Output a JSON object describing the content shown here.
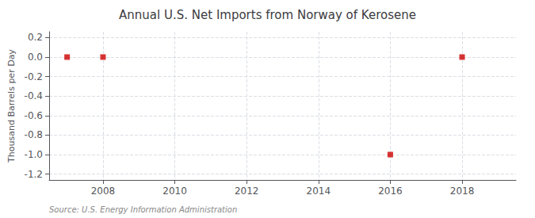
{
  "chart_data": {
    "type": "scatter",
    "title": "Annual U.S. Net Imports from Norway of Kerosene",
    "ylabel": "Thousand Barrels per Day",
    "source": "Source: U.S. Energy Information Administration",
    "x": [
      2007,
      2008,
      2016,
      2018
    ],
    "values": [
      0,
      0,
      -1,
      0
    ],
    "color": "#cc0000",
    "marker": "square",
    "xlim": [
      2006.5,
      2019.5
    ],
    "xticks": [
      2008,
      2010,
      2012,
      2014,
      2016,
      2018
    ],
    "ylim": [
      -1.26,
      0.26
    ],
    "yticks": [
      0.2,
      {
        "value": 0,
        "label": "0.0"
      },
      -0.2,
      -0.4,
      -0.6,
      -0.8,
      {
        "value": -1,
        "label": "-1.0"
      },
      -1.2
    ],
    "grid": true
  }
}
